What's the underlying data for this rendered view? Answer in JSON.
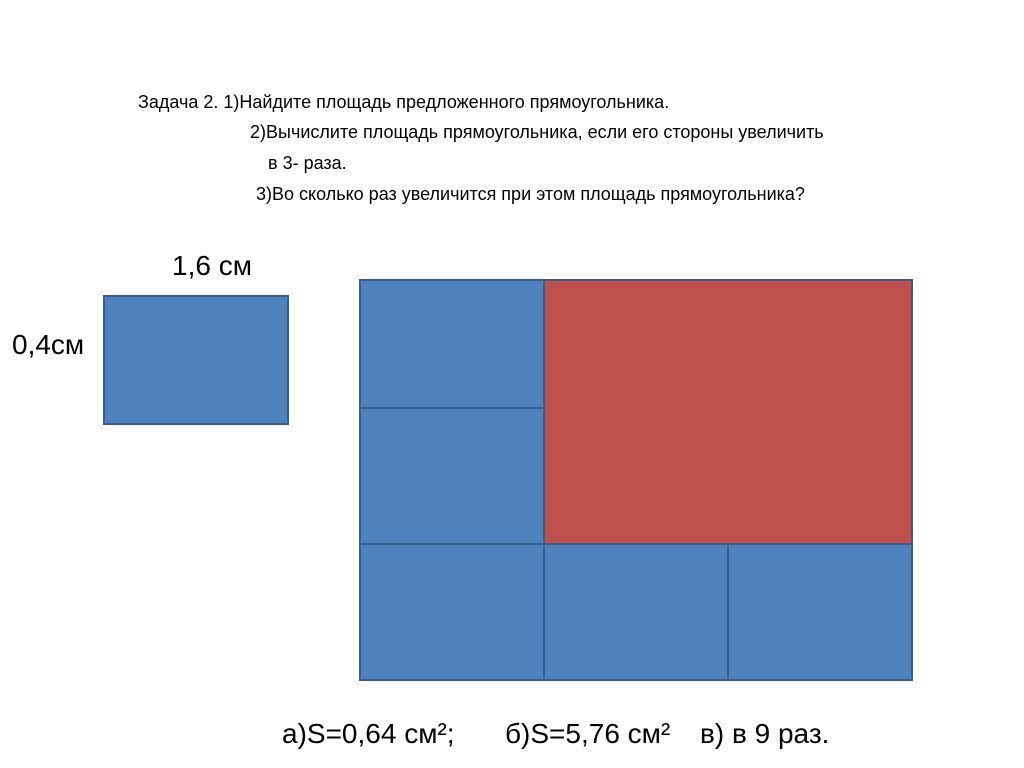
{
  "task": {
    "lines": [
      "Задача 2. 1)Найдите площадь предложенного прямоугольника.",
      "2)Вычислите площадь прямоугольника, если его стороны увеличить",
      "в 3- раза.",
      "3)Во сколько раз увеличится при этом площадь прямоугольника?"
    ]
  },
  "figure": {
    "width_label": "1,6 см",
    "height_label": "0,4см"
  },
  "answers": [
    "а)S=0,64 см²;",
    "б)S=5,76 см²",
    "в) в 9 раз."
  ]
}
